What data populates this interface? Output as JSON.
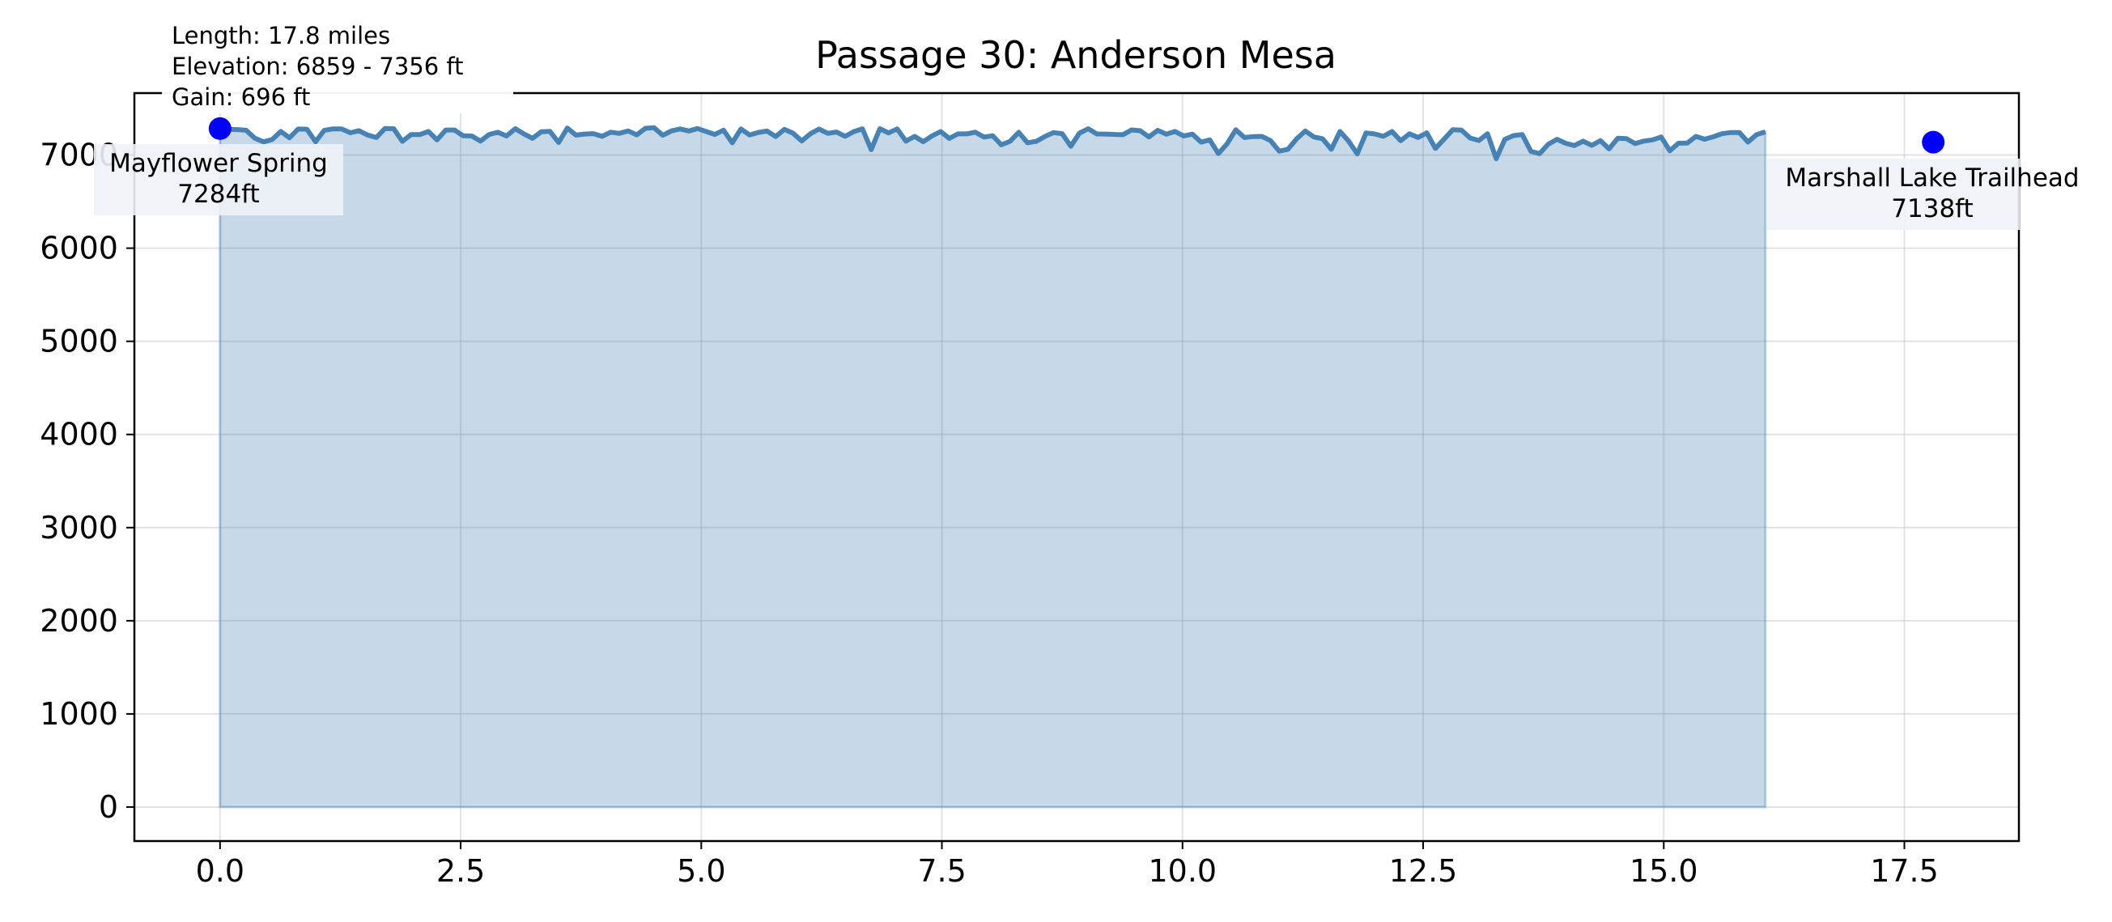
{
  "chart_data": {
    "type": "area",
    "title": "Passage 30: Anderson Mesa",
    "xlabel": "",
    "ylabel": "",
    "xlim": [
      -0.89,
      18.69
    ],
    "ylim": [
      -365,
      7665
    ],
    "xticks": [
      0.0,
      2.5,
      5.0,
      7.5,
      10.0,
      12.5,
      15.0,
      17.5
    ],
    "xtick_labels": [
      "0.0",
      "2.5",
      "5.0",
      "7.5",
      "10.0",
      "12.5",
      "15.0",
      "17.5"
    ],
    "yticks": [
      0,
      1000,
      2000,
      3000,
      4000,
      5000,
      6000,
      7000
    ],
    "ytick_labels": [
      "0",
      "1000",
      "2000",
      "3000",
      "4000",
      "5000",
      "6000",
      "7000"
    ],
    "grid": true,
    "stats": {
      "length": "Length: 17.8 miles",
      "elevation": "Elevation: 6859 - 7356 ft",
      "gain": "Gain: 696 ft"
    },
    "endpoints": [
      {
        "name": "Mayflower Spring",
        "label": "7284ft",
        "x": 0.0,
        "y": 7284
      },
      {
        "name": "Marshall Lake Trailhead",
        "label": "7138ft",
        "x": 17.8,
        "y": 7138
      }
    ],
    "series": [
      {
        "name": "elevation",
        "color": "#4682b4",
        "x_step": 0.0902,
        "y": [
          7284,
          7276,
          7273,
          7266,
          7182,
          7141,
          7167,
          7253,
          7185,
          7279,
          7277,
          7143,
          7264,
          7281,
          7280,
          7239,
          7262,
          7215,
          7188,
          7285,
          7283,
          7147,
          7219,
          7219,
          7253,
          7163,
          7269,
          7269,
          7207,
          7204,
          7150,
          7221,
          7244,
          7204,
          7283,
          7227,
          7179,
          7250,
          7254,
          7135,
          7290,
          7214,
          7225,
          7230,
          7201,
          7245,
          7232,
          7259,
          7217,
          7287,
          7293,
          7212,
          7259,
          7280,
          7258,
          7284,
          7252,
          7221,
          7267,
          7131,
          7280,
          7215,
          7243,
          7257,
          7198,
          7276,
          7235,
          7151,
          7228,
          7279,
          7233,
          7247,
          7201,
          7251,
          7282,
          7058,
          7283,
          7237,
          7280,
          7149,
          7200,
          7144,
          7204,
          7252,
          7178,
          7227,
          7227,
          7245,
          7192,
          7207,
          7110,
          7147,
          7244,
          7131,
          7146,
          7198,
          7241,
          7230,
          7094,
          7236,
          7282,
          7226,
          7225,
          7221,
          7218,
          7270,
          7261,
          7194,
          7265,
          7224,
          7253,
          7205,
          7224,
          7138,
          7163,
          7016,
          7121,
          7271,
          7188,
          7198,
          7200,
          7155,
          7042,
          7061,
          7173,
          7258,
          7194,
          7175,
          7062,
          7253,
          7149,
          7012,
          7237,
          7226,
          7201,
          7252,
          7154,
          7228,
          7189,
          7238,
          7071,
          7171,
          7272,
          7267,
          7183,
          7157,
          7229,
          6961,
          7169,
          7209,
          7220,
          7039,
          7014,
          7117,
          7169,
          7126,
          7102,
          7149,
          7104,
          7155,
          7066,
          7180,
          7176,
          7123,
          7150,
          7163,
          7194,
          7045,
          7127,
          7129,
          7200,
          7170,
          7196,
          7229,
          7242,
          7242,
          7139,
          7220,
          7249
        ]
      }
    ]
  }
}
